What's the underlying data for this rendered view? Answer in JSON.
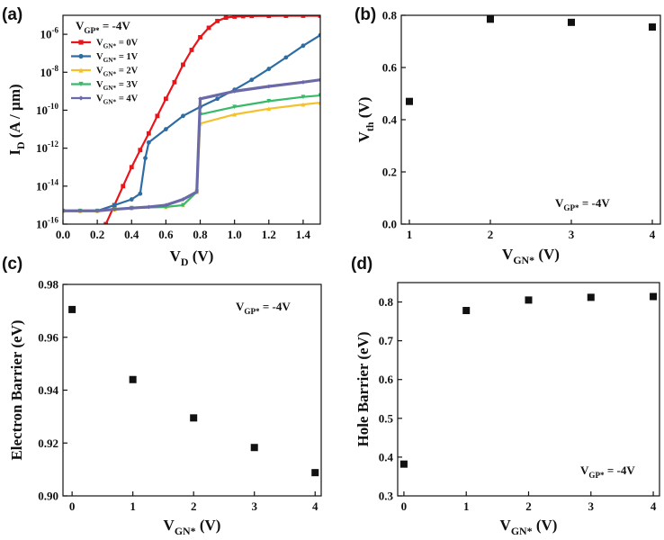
{
  "chart_data": [
    {
      "panel": "(a)",
      "type": "line",
      "xlabel": "V_D (V)",
      "ylabel": "I_D (A / µm)",
      "xlim": [
        0,
        1.5
      ],
      "ylim": [
        1e-16,
        1e-05
      ],
      "yscale": "log",
      "xticks": [
        "0.0",
        "0.2",
        "0.4",
        "0.6",
        "0.8",
        "1.0",
        "1.2",
        "1.4"
      ],
      "yticks": [
        "10-16",
        "10-14",
        "10-12",
        "10-10",
        "10-8",
        "10-6"
      ],
      "annotation": "V_GP* = -4V",
      "legend_position": "top-left",
      "series": [
        {
          "name": "V_GN* = 0V",
          "color": "#e8161b",
          "marker": "square",
          "x": [
            0.25,
            0.3,
            0.35,
            0.4,
            0.45,
            0.5,
            0.55,
            0.6,
            0.65,
            0.7,
            0.75,
            0.8,
            0.85,
            0.9,
            0.95,
            1.0,
            1.05,
            1.1,
            1.2,
            1.3,
            1.4,
            1.5
          ],
          "y": [
            1e-16,
            1e-15,
            1e-14,
            1e-13,
            8e-13,
            6e-12,
            5e-11,
            4e-10,
            3e-09,
            2.5e-08,
            1.5e-07,
            7e-07,
            2.2e-06,
            5e-06,
            7.5e-06,
            8.5e-06,
            9e-06,
            9.2e-06,
            9.3e-06,
            9.4e-06,
            9.5e-06,
            9.5e-06
          ]
        },
        {
          "name": "V_GN* = 1V",
          "color": "#2e6ca4",
          "marker": "circle",
          "x": [
            0.0,
            0.1,
            0.2,
            0.3,
            0.4,
            0.45,
            0.48,
            0.5,
            0.6,
            0.7,
            0.8,
            0.9,
            1.0,
            1.1,
            1.2,
            1.3,
            1.4,
            1.5
          ],
          "y": [
            5e-16,
            5e-16,
            5e-16,
            1e-15,
            2e-15,
            4e-15,
            3e-13,
            2e-12,
            1e-11,
            5e-11,
            1.5e-10,
            4e-10,
            1.2e-09,
            4e-09,
            1.5e-08,
            6e-08,
            2.5e-07,
            9e-07
          ]
        },
        {
          "name": "V_GN* = 2V",
          "color": "#f6c02a",
          "marker": "triangle",
          "x": [
            0.0,
            0.1,
            0.2,
            0.3,
            0.4,
            0.6,
            0.7,
            0.78,
            0.8,
            1.0,
            1.2,
            1.4,
            1.5
          ],
          "y": [
            5e-16,
            5e-16,
            5e-16,
            6e-16,
            7e-16,
            8e-16,
            1e-15,
            5e-15,
            2e-11,
            6e-11,
            1.2e-10,
            2e-10,
            2.5e-10
          ]
        },
        {
          "name": "V_GN* = 3V",
          "color": "#39b96a",
          "marker": "down-triangle",
          "x": [
            0.0,
            0.1,
            0.2,
            0.3,
            0.4,
            0.6,
            0.7,
            0.78,
            0.8,
            1.0,
            1.2,
            1.4,
            1.5
          ],
          "y": [
            5e-16,
            5e-16,
            5e-16,
            6e-16,
            7e-16,
            8e-16,
            1e-15,
            5e-15,
            6e-11,
            1.5e-10,
            3e-10,
            5e-10,
            6e-10
          ]
        },
        {
          "name": "V_GN* = 4V",
          "color": "#6a6aa8",
          "marker": "diamond",
          "x": [
            0.0,
            0.1,
            0.2,
            0.3,
            0.4,
            0.5,
            0.6,
            0.7,
            0.78,
            0.8,
            1.0,
            1.2,
            1.4,
            1.5
          ],
          "y": [
            5e-16,
            5e-16,
            5e-16,
            6e-16,
            7e-16,
            8e-16,
            1e-15,
            2e-15,
            5e-15,
            4e-10,
            1e-09,
            1.8e-09,
            3e-09,
            4e-09
          ]
        }
      ]
    },
    {
      "panel": "(b)",
      "type": "scatter",
      "xlabel": "V_GN* (V)",
      "ylabel": "V_th (V)",
      "xlim": [
        0.9,
        4.1
      ],
      "ylim": [
        0,
        0.8
      ],
      "xticks": [
        "1",
        "2",
        "3",
        "4"
      ],
      "yticks": [
        "0.0",
        "0.2",
        "0.4",
        "0.6",
        "0.8"
      ],
      "annotation": "V_GP* = -4V",
      "x": [
        1,
        2,
        3,
        4
      ],
      "y": [
        0.47,
        0.785,
        0.773,
        0.755
      ]
    },
    {
      "panel": "(c)",
      "type": "scatter",
      "xlabel": "V_GN* (V)",
      "ylabel": "Electron Barrier (eV)",
      "xlim": [
        -0.15,
        4.1
      ],
      "ylim": [
        0.9,
        0.98
      ],
      "xticks": [
        "0",
        "1",
        "2",
        "3",
        "4"
      ],
      "yticks": [
        "0.90",
        "0.92",
        "0.94",
        "0.96",
        "0.98"
      ],
      "annotation": "V_GP* = -4V",
      "x": [
        0,
        1,
        2,
        3,
        4
      ],
      "y": [
        0.9705,
        0.944,
        0.9295,
        0.9183,
        0.9088
      ]
    },
    {
      "panel": "(d)",
      "type": "scatter",
      "xlabel": "V_GN* (V)",
      "ylabel": "Hole Barrier (eV)",
      "xlim": [
        -0.1,
        4.1
      ],
      "ylim": [
        0.3,
        0.85
      ],
      "xticks": [
        "0",
        "1",
        "2",
        "3",
        "4"
      ],
      "yticks": [
        "0.3",
        "0.4",
        "0.5",
        "0.6",
        "0.7",
        "0.8"
      ],
      "annotation": "V_GP* = -4V",
      "x": [
        0,
        1,
        2,
        3,
        4
      ],
      "y": [
        0.382,
        0.778,
        0.805,
        0.812,
        0.814
      ]
    }
  ]
}
